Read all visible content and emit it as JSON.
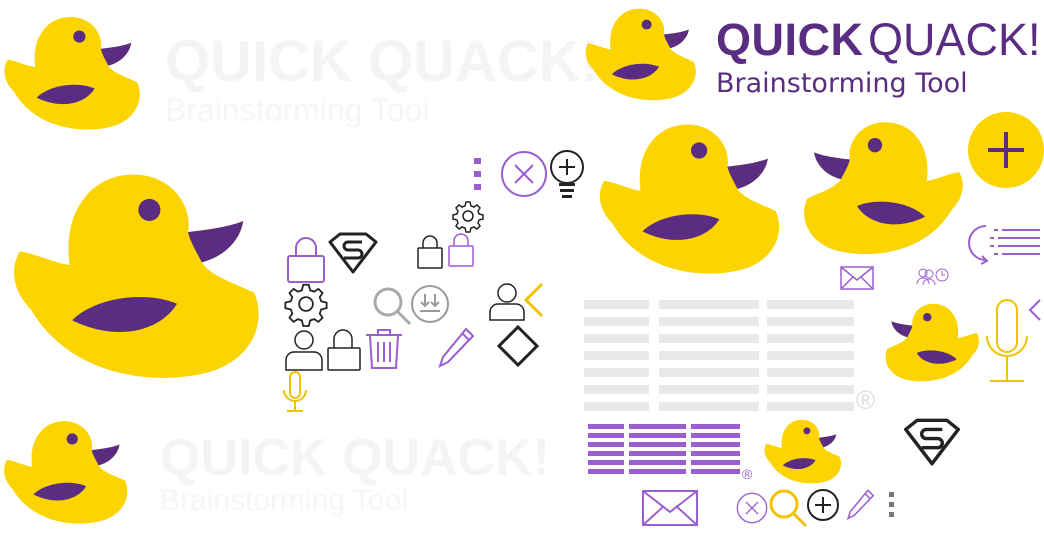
{
  "brand": {
    "title_bold": "QUICK",
    "title_light": "QUACK!",
    "subtitle": "Brainstorming Tool",
    "ghost_title": "QUICK QUACK!",
    "ghost_subtitle": "Brainstorming Tool",
    "ibm_logo": "IBM",
    "registered_mark": "®"
  },
  "colors": {
    "duck_yellow": "#fcd402",
    "duck_purple": "#5a2d82",
    "icon_purple": "#9b5ed0",
    "icon_dark": "#222222",
    "icon_gray": "#9a9a9a",
    "icon_yellow": "#f2c200",
    "ibm_gray": "#e8e8e8",
    "ibm_purple": "#9b5ed0"
  },
  "icons": [
    "duck-icon",
    "plus-icon",
    "close-icon",
    "lightbulb-icon",
    "gear-icon",
    "lock-icon",
    "superman-icon",
    "search-icon",
    "download-icon",
    "user-icon",
    "chevron-left-icon",
    "diamond-icon",
    "trash-icon",
    "pencil-icon",
    "microphone-icon",
    "mail-icon",
    "list-icon",
    "kebab-menu-icon",
    "users-clock-icon"
  ]
}
